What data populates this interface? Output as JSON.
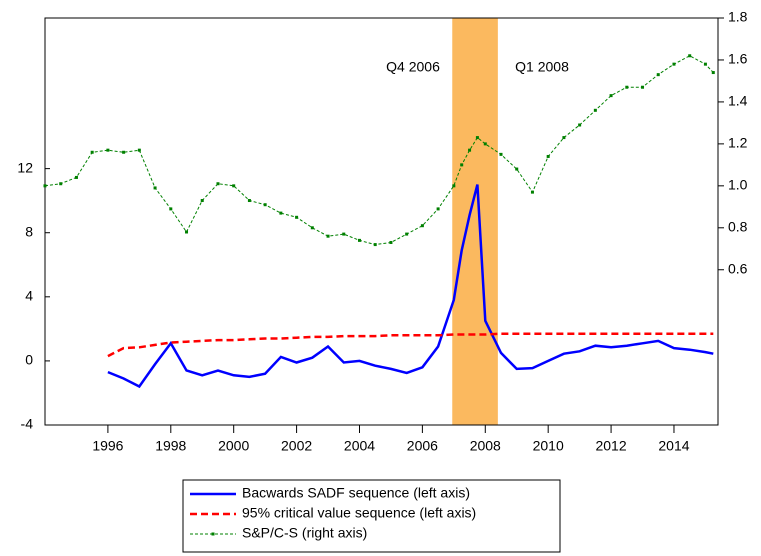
{
  "chart_data": {
    "type": "line",
    "x": [
      1994,
      1994.5,
      1995,
      1995.5,
      1996,
      1996.5,
      1997,
      1997.5,
      1998,
      1998.5,
      1999,
      1999.5,
      2000,
      2000.5,
      2001,
      2001.5,
      2002,
      2002.5,
      2003,
      2003.5,
      2004,
      2004.5,
      2005,
      2005.5,
      2006,
      2006.5,
      2007,
      2007.25,
      2007.5,
      2007.75,
      2008,
      2008.5,
      2009,
      2009.5,
      2010,
      2010.5,
      2011,
      2011.5,
      2012,
      2012.5,
      2013,
      2013.5,
      2014,
      2014.5,
      2015,
      2015.25
    ],
    "series": [
      {
        "name": "Bacwards SADF sequence (left axis)",
        "color": "#0000ff",
        "dash": "solid",
        "axis": "y",
        "values": [
          null,
          null,
          null,
          null,
          -0.7,
          -1.1,
          -1.6,
          -0.2,
          1.1,
          -0.6,
          -0.9,
          -0.6,
          -0.9,
          -1.0,
          -0.8,
          0.25,
          -0.1,
          0.2,
          0.9,
          -0.1,
          0.0,
          -0.3,
          -0.5,
          -0.75,
          -0.4,
          0.9,
          3.8,
          6.9,
          9.1,
          11.0,
          2.5,
          0.5,
          -0.5,
          -0.45,
          0.0,
          0.45,
          0.6,
          0.95,
          0.85,
          0.95,
          1.1,
          1.25,
          0.8,
          0.7,
          0.55,
          0.45
        ]
      },
      {
        "name": "95% critical value sequence (left axis)",
        "color": "#ff0000",
        "dash": "dashed",
        "axis": "y",
        "values": [
          null,
          null,
          null,
          null,
          0.3,
          0.8,
          0.85,
          1.0,
          1.15,
          1.2,
          1.25,
          1.3,
          1.3,
          1.35,
          1.4,
          1.4,
          1.45,
          1.5,
          1.5,
          1.55,
          1.55,
          1.55,
          1.6,
          1.6,
          1.6,
          1.6,
          1.65,
          1.65,
          1.65,
          1.65,
          1.65,
          1.7,
          1.7,
          1.7,
          1.7,
          1.7,
          1.7,
          1.7,
          1.7,
          1.7,
          1.7,
          1.7,
          1.7,
          1.7,
          1.7,
          1.7
        ]
      },
      {
        "name": "S&P/C-S (right axis)",
        "color": "#008000",
        "dash": "dotted-markers",
        "axis": "y2",
        "values": [
          1.0,
          1.01,
          1.04,
          1.16,
          1.17,
          1.16,
          1.17,
          0.99,
          0.89,
          0.78,
          0.93,
          1.01,
          1.0,
          0.93,
          0.91,
          0.87,
          0.85,
          0.8,
          0.76,
          0.77,
          0.74,
          0.72,
          0.73,
          0.77,
          0.81,
          0.89,
          1.0,
          1.1,
          1.17,
          1.23,
          1.2,
          1.15,
          1.08,
          0.97,
          1.14,
          1.23,
          1.29,
          1.36,
          1.43,
          1.47,
          1.47,
          1.53,
          1.58,
          1.62,
          1.58,
          1.54
        ]
      }
    ],
    "xlim": [
      1994,
      2015.4
    ],
    "xticks": [
      1996,
      1998,
      2000,
      2002,
      2004,
      2006,
      2008,
      2010,
      2012,
      2014
    ],
    "ylim": [
      -4,
      21.4
    ],
    "yticks": [
      -4,
      0,
      4,
      8,
      12
    ],
    "y2lim": [
      -0.14,
      1.8
    ],
    "y2ticks": [
      {
        "value": 0.6,
        "label": "0.6"
      },
      {
        "value": 0.8,
        "label": "0.8"
      },
      {
        "value": 1,
        "label": "1.0"
      },
      {
        "value": 1.2,
        "label": "1.2"
      },
      {
        "value": 1.4,
        "label": "1.4"
      },
      {
        "value": 1.6,
        "label": "1.6"
      },
      {
        "value": 1.8,
        "label": "1.8"
      }
    ],
    "shaded_span": {
      "from": 2006.95,
      "to": 2008.4,
      "color": "#fbb95f"
    },
    "annotations": [
      "Q4 2006",
      "Q1 2008"
    ],
    "grid": false,
    "legend": "bottom"
  }
}
